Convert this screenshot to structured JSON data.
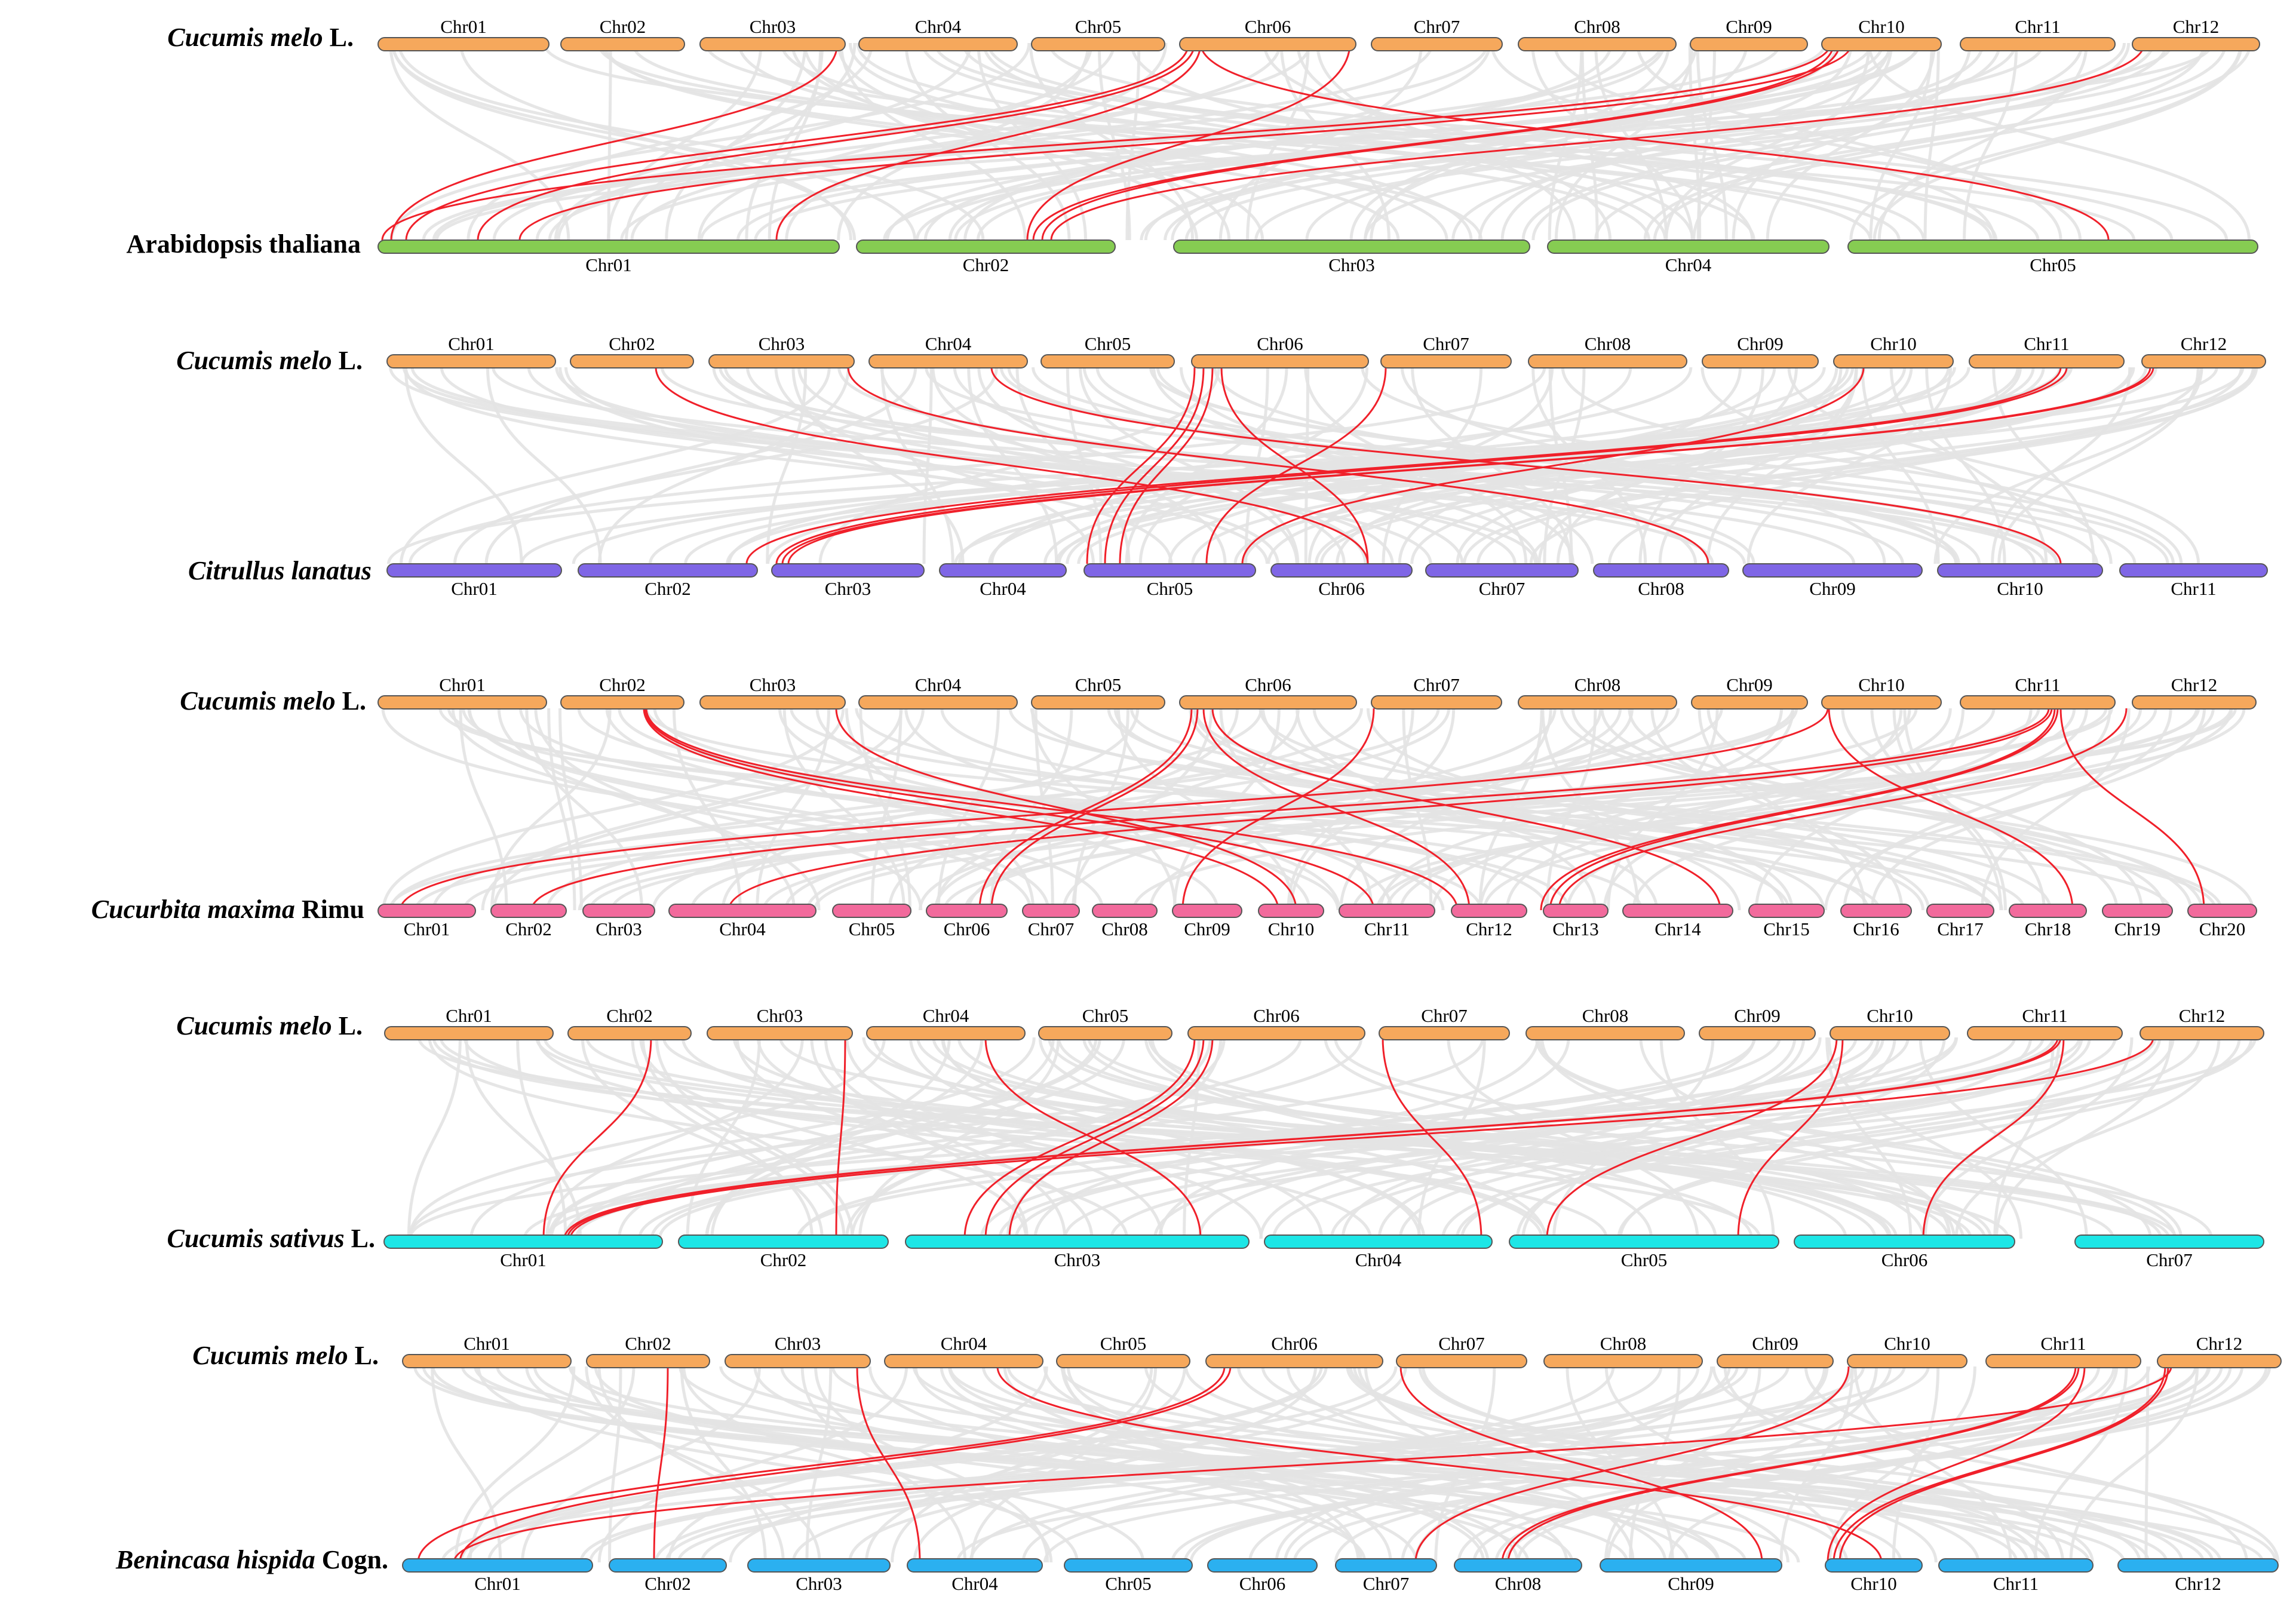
{
  "colors": {
    "melon": "#f6a85c",
    "arabidopsis": "#86cc52",
    "citrullus": "#7f66e6",
    "cucurbita": "#f26a9c",
    "cucumis_sativus": "#1de6e6",
    "benincasa": "#2bb0f0",
    "background_links": "#e3e3e3",
    "highlight_links": "#f0202a"
  },
  "panels": [
    {
      "top": {
        "species_italic": "Cucumis melo",
        "species_rest": " L.",
        "chromosomes": [
          "Chr01",
          "Chr02",
          "Chr03",
          "Chr04",
          "Chr05",
          "Chr06",
          "Chr07",
          "Chr08",
          "Chr09",
          "Chr10",
          "Chr11",
          "Chr12"
        ]
      },
      "bottom": {
        "species_italic": "",
        "species_rest": "Arabidopsis thaliana",
        "chromosomes": [
          "Chr01",
          "Chr02",
          "Chr03",
          "Chr04",
          "Chr05"
        ]
      }
    },
    {
      "top": {
        "species_italic": "Cucumis melo",
        "species_rest": " L.",
        "chromosomes": [
          "Chr01",
          "Chr02",
          "Chr03",
          "Chr04",
          "Chr05",
          "Chr06",
          "Chr07",
          "Chr08",
          "Chr09",
          "Chr10",
          "Chr11",
          "Chr12"
        ]
      },
      "bottom": {
        "species_italic": "Citrullus lanatus",
        "species_rest": "",
        "chromosomes": [
          "Chr01",
          "Chr02",
          "Chr03",
          "Chr04",
          "Chr05",
          "Chr06",
          "Chr07",
          "Chr08",
          "Chr09",
          "Chr10",
          "Chr11"
        ]
      }
    },
    {
      "top": {
        "species_italic": "Cucumis melo",
        "species_rest": " L.",
        "chromosomes": [
          "Chr01",
          "Chr02",
          "Chr03",
          "Chr04",
          "Chr05",
          "Chr06",
          "Chr07",
          "Chr08",
          "Chr09",
          "Chr10",
          "Chr11",
          "Chr12"
        ]
      },
      "bottom": {
        "species_italic": "Cucurbita maxima",
        "species_rest": " Rimu",
        "chromosomes": [
          "Chr01",
          "Chr02",
          "Chr03",
          "Chr04",
          "Chr05",
          "Chr06",
          "Chr07",
          "Chr08",
          "Chr09",
          "Chr10",
          "Chr11",
          "Chr12",
          "Chr13",
          "Chr14",
          "Chr15",
          "Chr16",
          "Chr17",
          "Chr18",
          "Chr19",
          "Chr20"
        ]
      }
    },
    {
      "top": {
        "species_italic": "Cucumis melo",
        "species_rest": " L.",
        "chromosomes": [
          "Chr01",
          "Chr02",
          "Chr03",
          "Chr04",
          "Chr05",
          "Chr06",
          "Chr07",
          "Chr08",
          "Chr09",
          "Chr10",
          "Chr11",
          "Chr12"
        ]
      },
      "bottom": {
        "species_italic": "Cucumis sativus",
        "species_rest": " L.",
        "chromosomes": [
          "Chr01",
          "Chr02",
          "Chr03",
          "Chr04",
          "Chr05",
          "Chr06",
          "Chr07"
        ]
      }
    },
    {
      "top": {
        "species_italic": "Cucumis melo",
        "species_rest": " L.",
        "chromosomes": [
          "Chr01",
          "Chr02",
          "Chr03",
          "Chr04",
          "Chr05",
          "Chr06",
          "Chr07",
          "Chr08",
          "Chr09",
          "Chr10",
          "Chr11",
          "Chr12"
        ]
      },
      "bottom": {
        "species_italic": "Benincasa hispida",
        "species_rest": " Cogn.",
        "chromosomes": [
          "Chr01",
          "Chr02",
          "Chr03",
          "Chr04",
          "Chr05",
          "Chr06",
          "Chr07",
          "Chr08",
          "Chr09",
          "Chr10",
          "Chr11",
          "Chr12"
        ]
      }
    }
  ]
}
